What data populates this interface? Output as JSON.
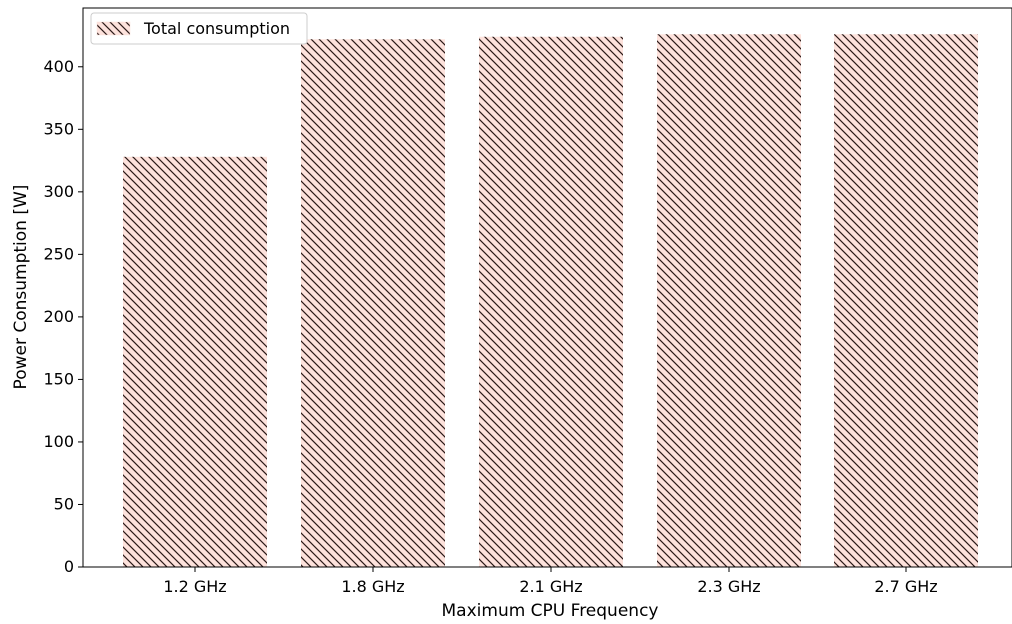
{
  "chart_data": {
    "type": "bar",
    "categories": [
      "1.2 GHz",
      "1.8 GHz",
      "2.1 GHz",
      "2.3 GHz",
      "2.7 GHz"
    ],
    "series": [
      {
        "name": "Total consumption",
        "values": [
          328,
          422,
          424,
          426,
          426
        ]
      }
    ],
    "xlabel": "Maximum CPU Frequency",
    "ylabel": "Power Consumption [W]",
    "ylim": [
      0,
      447
    ],
    "yticks": [
      0,
      50,
      100,
      150,
      200,
      250,
      300,
      350,
      400
    ],
    "grid": false,
    "legend_position": "top-left",
    "bar_fill_color": "#fde2dc",
    "hatch_color": "#2b1a18",
    "hatch_style": "diagonal"
  }
}
